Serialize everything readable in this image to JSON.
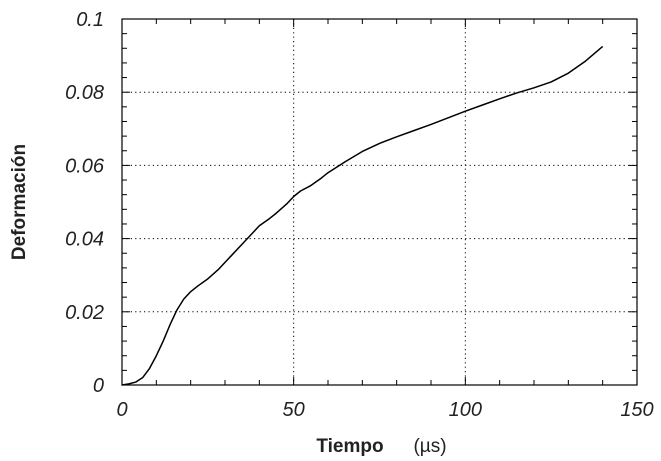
{
  "chart_data": {
    "type": "line",
    "title": "",
    "xlabel": "Tiempo",
    "xlabel_unit": "(µs)",
    "ylabel": "Deformación",
    "xlim": [
      0,
      150
    ],
    "ylim": [
      0,
      0.1
    ],
    "grid": true,
    "x_ticks": [
      0,
      50,
      100,
      150
    ],
    "x_tick_labels": [
      "0",
      "50",
      "100",
      "150"
    ],
    "y_ticks": [
      0,
      0.02,
      0.04,
      0.06,
      0.08,
      0.1
    ],
    "y_tick_labels": [
      "0",
      "0.02",
      "0.04",
      "0.06",
      "0.08",
      "0.1"
    ],
    "series": [
      {
        "color": "#000000",
        "x": [
          0,
          2,
          4,
          6,
          8,
          10,
          12,
          14,
          16,
          18,
          20,
          22,
          25,
          28,
          30,
          32,
          35,
          38,
          40,
          43,
          45,
          48,
          50,
          52,
          55,
          58,
          60,
          65,
          70,
          75,
          80,
          85,
          90,
          95,
          100,
          105,
          110,
          115,
          120,
          125,
          130,
          135,
          140
        ],
        "y": [
          0,
          0.0003,
          0.0008,
          0.002,
          0.0045,
          0.008,
          0.012,
          0.0165,
          0.0205,
          0.0235,
          0.0255,
          0.027,
          0.029,
          0.0315,
          0.0335,
          0.0355,
          0.0385,
          0.0415,
          0.0435,
          0.0455,
          0.047,
          0.0495,
          0.0515,
          0.053,
          0.0545,
          0.0565,
          0.058,
          0.061,
          0.0638,
          0.066,
          0.0678,
          0.0695,
          0.0712,
          0.073,
          0.0748,
          0.0765,
          0.0782,
          0.0798,
          0.0812,
          0.0828,
          0.0852,
          0.0885,
          0.0925
        ]
      }
    ]
  }
}
